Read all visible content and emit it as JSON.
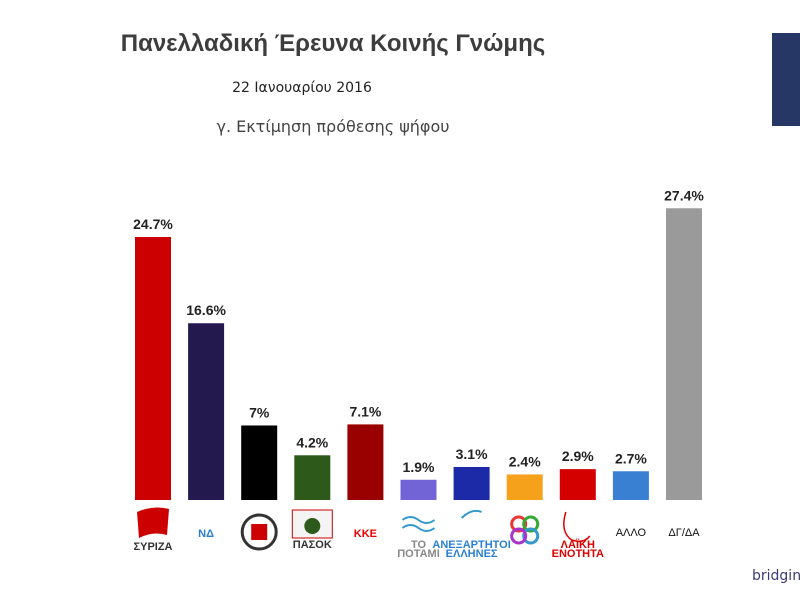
{
  "header": {
    "title": "Πανελλαδική Έρευνα Κοινής Γνώμης",
    "date": "22 Ιανουαρίου 2016",
    "subtitle": "γ. Εκτίμηση πρόθεσης ψήφου"
  },
  "watermark": "bridging",
  "colors": {
    "corner_panel": "#263766"
  },
  "chart_data": {
    "type": "bar",
    "title": "γ. Εκτίμηση πρόθεσης ψήφου",
    "categories": [
      "ΣΥΡΙΖΑ",
      "ΝΔ",
      "",
      "ΠΑΣΟΚ",
      "ΚΚΕ",
      "ΤΟ ΠΟΤΑΜΙ",
      "ΑΝΕΞΑΡΤΗΤΟΙ ΕΛΛΗΝΕΣ",
      "",
      "ΛΑΪΚΗ ΕΝΟΤΗΤΑ",
      "ΑΛΛΟ",
      "ΔΓ/ΔΑ"
    ],
    "category_display": [
      "logo",
      "logo",
      "logo",
      "logo",
      "logo",
      "logo",
      "logo",
      "logo",
      "logo",
      "text",
      "text"
    ],
    "values": [
      24.7,
      16.6,
      7,
      4.2,
      7.1,
      1.9,
      3.1,
      2.4,
      2.9,
      2.7,
      27.4
    ],
    "value_labels": [
      "24.7%",
      "16.6%",
      "7%",
      "4.2%",
      "7.1%",
      "1.9%",
      "3.1%",
      "2.4%",
      "2.9%",
      "2.7%",
      "27.4%"
    ],
    "colors": [
      "#cc0000",
      "#23194f",
      "#000000",
      "#2d5a1b",
      "#990000",
      "#7264d6",
      "#1c2aa8",
      "#f5a11c",
      "#d40000",
      "#3a80d2",
      "#9a9a9a"
    ],
    "ylim": [
      0,
      30
    ],
    "grid": false,
    "legend": "none",
    "xlabel": "",
    "ylabel": ""
  }
}
